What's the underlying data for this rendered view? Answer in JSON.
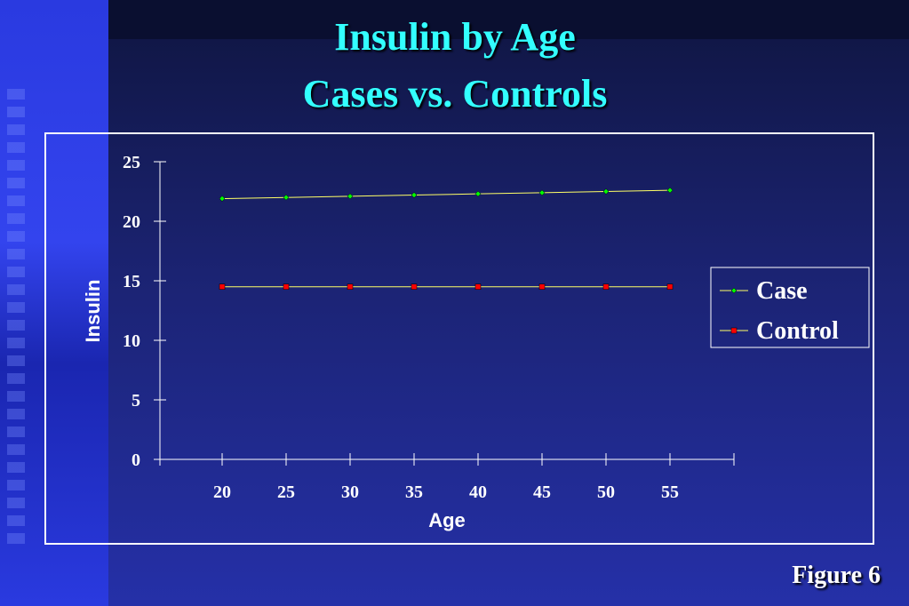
{
  "title_line1": "Insulin by Age",
  "title_line2": "Cases vs. Controls",
  "figure_label": "Figure 6",
  "colors": {
    "title": "#33ffff",
    "case": "#00ff00",
    "case_line": "#ffff66",
    "control": "#ff0000",
    "control_line": "#ffff66",
    "axis": "#ffffff"
  },
  "chart_data": {
    "type": "line",
    "xlabel": "Age",
    "ylabel": "Insulin",
    "x": [
      20,
      25,
      30,
      35,
      40,
      45,
      50,
      55
    ],
    "ylim": [
      0,
      25
    ],
    "yticks": [
      0,
      5,
      10,
      15,
      20,
      25
    ],
    "grid": false,
    "legend_position": "right",
    "series": [
      {
        "name": "Case",
        "values": [
          21.9,
          22.0,
          22.1,
          22.2,
          22.3,
          22.4,
          22.5,
          22.6
        ],
        "marker": "diamond"
      },
      {
        "name": "Control",
        "values": [
          14.5,
          14.5,
          14.5,
          14.5,
          14.5,
          14.5,
          14.5,
          14.5
        ],
        "marker": "square"
      }
    ]
  }
}
